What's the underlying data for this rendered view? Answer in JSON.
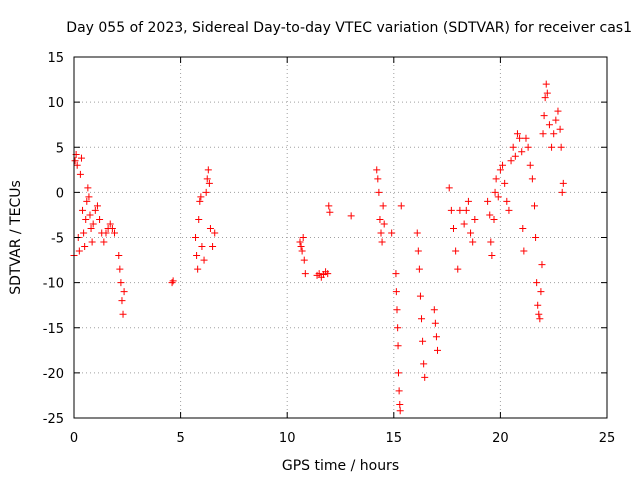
{
  "chart_data": {
    "type": "scatter",
    "title": "Day 055 of 2023, Sidereal Day-to-day VTEC variation (SDTVAR) for receiver cas1",
    "xlabel": "GPS time / hours",
    "ylabel": "SDTVAR / TECUs",
    "xlim": [
      0,
      25
    ],
    "ylim": [
      -25,
      15
    ],
    "xticks": [
      0,
      5,
      10,
      15,
      20,
      25
    ],
    "yticks": [
      -25,
      -20,
      -15,
      -10,
      -5,
      0,
      5,
      10,
      15
    ],
    "grid": true,
    "marker": "+",
    "color": "#ff0000",
    "series": [
      {
        "name": "SDTVAR",
        "points": [
          [
            0.0,
            -7.0
          ],
          [
            0.05,
            3.5
          ],
          [
            0.1,
            4.2
          ],
          [
            0.15,
            3.0
          ],
          [
            0.2,
            -5.0
          ],
          [
            0.25,
            -6.5
          ],
          [
            0.3,
            2.0
          ],
          [
            0.35,
            3.8
          ],
          [
            0.4,
            -2.0
          ],
          [
            0.45,
            -4.5
          ],
          [
            0.5,
            -6.0
          ],
          [
            0.55,
            -3.0
          ],
          [
            0.6,
            -1.0
          ],
          [
            0.65,
            0.5
          ],
          [
            0.7,
            -0.5
          ],
          [
            0.75,
            -2.5
          ],
          [
            0.8,
            -4.0
          ],
          [
            0.85,
            -5.5
          ],
          [
            0.9,
            -3.5
          ],
          [
            1.0,
            -2.0
          ],
          [
            1.1,
            -1.5
          ],
          [
            1.2,
            -3.0
          ],
          [
            1.3,
            -4.5
          ],
          [
            1.4,
            -5.5
          ],
          [
            1.5,
            -4.5
          ],
          [
            1.6,
            -4.0
          ],
          [
            1.7,
            -3.5
          ],
          [
            1.8,
            -4.0
          ],
          [
            1.9,
            -4.5
          ],
          [
            2.1,
            -7.0
          ],
          [
            2.15,
            -8.5
          ],
          [
            2.2,
            -10.0
          ],
          [
            2.25,
            -12.0
          ],
          [
            2.3,
            -13.5
          ],
          [
            2.35,
            -11.0
          ],
          [
            4.6,
            -10.0
          ],
          [
            4.65,
            -9.8
          ],
          [
            5.7,
            -5.0
          ],
          [
            5.75,
            -7.0
          ],
          [
            5.8,
            -8.5
          ],
          [
            5.85,
            -3.0
          ],
          [
            5.9,
            -1.0
          ],
          [
            5.95,
            -0.5
          ],
          [
            6.0,
            -6.0
          ],
          [
            6.1,
            -7.5
          ],
          [
            6.2,
            0.0
          ],
          [
            6.25,
            1.5
          ],
          [
            6.3,
            2.5
          ],
          [
            6.35,
            1.0
          ],
          [
            6.4,
            -4.0
          ],
          [
            6.5,
            -6.0
          ],
          [
            6.6,
            -4.5
          ],
          [
            10.6,
            -5.5
          ],
          [
            10.65,
            -6.0
          ],
          [
            10.7,
            -6.5
          ],
          [
            10.75,
            -5.0
          ],
          [
            10.8,
            -7.5
          ],
          [
            10.85,
            -9.0
          ],
          [
            11.4,
            -9.2
          ],
          [
            11.5,
            -9.0
          ],
          [
            11.6,
            -9.4
          ],
          [
            11.7,
            -9.1
          ],
          [
            11.8,
            -8.8
          ],
          [
            11.9,
            -9.0
          ],
          [
            11.95,
            -1.5
          ],
          [
            12.0,
            -2.2
          ],
          [
            13.0,
            -2.6
          ],
          [
            14.2,
            2.5
          ],
          [
            14.25,
            1.5
          ],
          [
            14.3,
            0.0
          ],
          [
            14.35,
            -3.0
          ],
          [
            14.4,
            -4.5
          ],
          [
            14.45,
            -5.5
          ],
          [
            14.5,
            -1.5
          ],
          [
            14.55,
            -3.5
          ],
          [
            14.9,
            -4.5
          ],
          [
            15.1,
            -9.0
          ],
          [
            15.12,
            -11.0
          ],
          [
            15.15,
            -13.0
          ],
          [
            15.18,
            -15.0
          ],
          [
            15.2,
            -17.0
          ],
          [
            15.22,
            -20.0
          ],
          [
            15.25,
            -22.0
          ],
          [
            15.28,
            -23.5
          ],
          [
            15.3,
            -24.2
          ],
          [
            15.35,
            -1.5
          ],
          [
            16.1,
            -4.5
          ],
          [
            16.15,
            -6.5
          ],
          [
            16.2,
            -8.5
          ],
          [
            16.25,
            -11.5
          ],
          [
            16.3,
            -14.0
          ],
          [
            16.35,
            -16.5
          ],
          [
            16.4,
            -19.0
          ],
          [
            16.45,
            -20.5
          ],
          [
            16.9,
            -13.0
          ],
          [
            16.95,
            -14.5
          ],
          [
            17.0,
            -16.0
          ],
          [
            17.05,
            -17.5
          ],
          [
            17.6,
            0.5
          ],
          [
            17.7,
            -2.0
          ],
          [
            17.8,
            -4.0
          ],
          [
            17.9,
            -6.5
          ],
          [
            18.0,
            -8.5
          ],
          [
            18.1,
            -2.0
          ],
          [
            18.3,
            -3.5
          ],
          [
            18.4,
            -2.0
          ],
          [
            18.5,
            -1.0
          ],
          [
            18.6,
            -4.5
          ],
          [
            18.7,
            -5.5
          ],
          [
            18.8,
            -3.0
          ],
          [
            19.4,
            -1.0
          ],
          [
            19.5,
            -2.5
          ],
          [
            19.55,
            -5.5
          ],
          [
            19.6,
            -7.0
          ],
          [
            19.7,
            -3.0
          ],
          [
            19.75,
            0.0
          ],
          [
            19.8,
            1.5
          ],
          [
            19.9,
            -0.5
          ],
          [
            20.0,
            2.5
          ],
          [
            20.1,
            3.0
          ],
          [
            20.2,
            1.0
          ],
          [
            20.3,
            -1.0
          ],
          [
            20.4,
            -2.0
          ],
          [
            20.5,
            3.5
          ],
          [
            20.6,
            5.0
          ],
          [
            20.7,
            4.0
          ],
          [
            20.8,
            6.5
          ],
          [
            20.9,
            6.0
          ],
          [
            21.0,
            4.5
          ],
          [
            21.05,
            -4.0
          ],
          [
            21.1,
            -6.5
          ],
          [
            21.2,
            6.0
          ],
          [
            21.3,
            5.0
          ],
          [
            21.4,
            3.0
          ],
          [
            21.5,
            1.5
          ],
          [
            21.6,
            -1.5
          ],
          [
            21.65,
            -5.0
          ],
          [
            21.7,
            -10.0
          ],
          [
            21.75,
            -12.5
          ],
          [
            21.8,
            -13.5
          ],
          [
            21.85,
            -14.0
          ],
          [
            21.9,
            -11.0
          ],
          [
            21.95,
            -8.0
          ],
          [
            22.0,
            6.5
          ],
          [
            22.05,
            8.5
          ],
          [
            22.1,
            10.5
          ],
          [
            22.15,
            12.0
          ],
          [
            22.2,
            11.0
          ],
          [
            22.3,
            7.5
          ],
          [
            22.4,
            5.0
          ],
          [
            22.5,
            6.5
          ],
          [
            22.6,
            8.0
          ],
          [
            22.7,
            9.0
          ],
          [
            22.8,
            7.0
          ],
          [
            22.85,
            5.0
          ],
          [
            22.9,
            0.0
          ],
          [
            22.95,
            1.0
          ]
        ]
      }
    ]
  }
}
